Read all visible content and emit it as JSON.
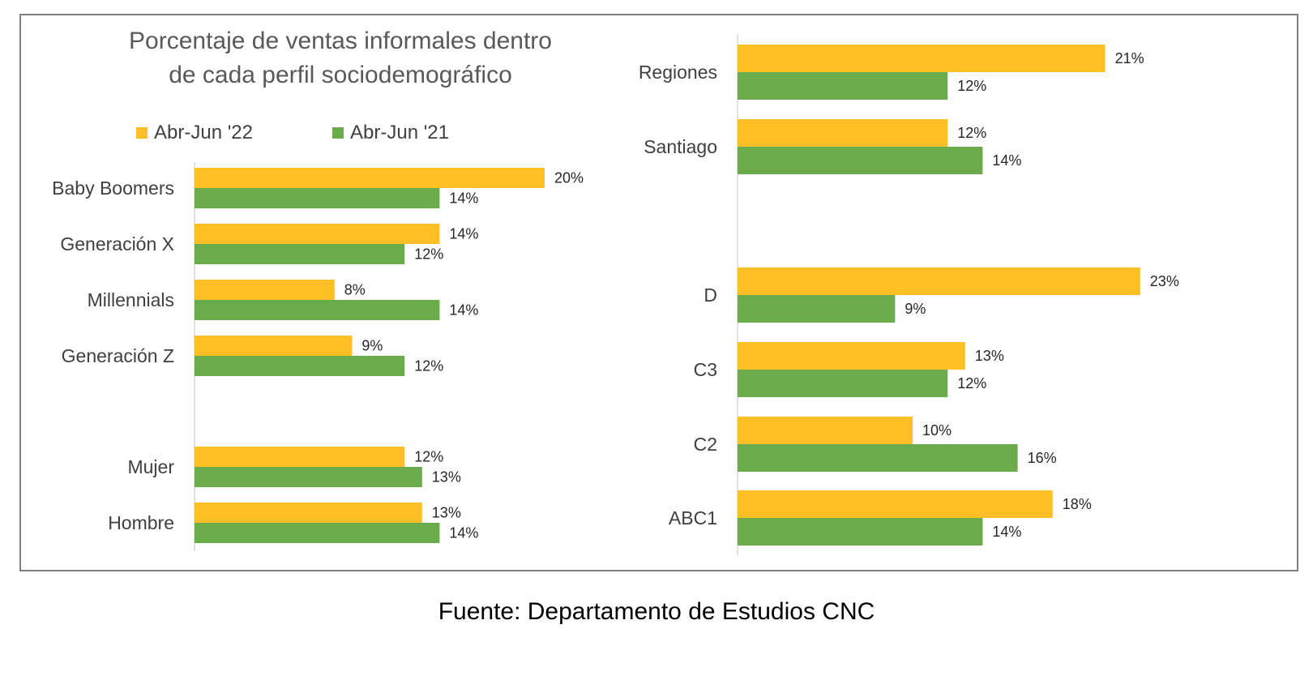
{
  "title_line1": "Porcentaje de ventas informales dentro",
  "title_line2": "de cada perfil sociodemográfico",
  "source": "Fuente: Departamento de Estudios CNC",
  "colors": {
    "series1": "#fdbe26",
    "series2": "#6aac4c",
    "axis": "#d9d9d9",
    "frame": "#7f7f7f"
  },
  "chart_data": {
    "type": "bar",
    "orientation": "horizontal",
    "title": "Porcentaje de ventas informales dentro de cada perfil sociodemográfico",
    "legend": [
      "Abr-Jun '22",
      "Abr-Jun '21"
    ],
    "legend_position": "top",
    "value_format": "percent",
    "grid": false,
    "panels": [
      {
        "name": "left",
        "xlim": [
          0,
          23
        ],
        "categories": [
          "Baby Boomers",
          "Generación X",
          "Millennials",
          "Generación Z",
          "Mujer",
          "Hombre"
        ],
        "series": [
          {
            "name": "Abr-Jun '22",
            "values": [
              20,
              14,
              8,
              9,
              12,
              13
            ]
          },
          {
            "name": "Abr-Jun '21",
            "values": [
              14,
              12,
              14,
              12,
              13,
              14
            ]
          }
        ]
      },
      {
        "name": "right",
        "xlim": [
          0,
          23
        ],
        "categories": [
          "Regiones",
          "Santiago",
          "D",
          "C3",
          "C2",
          "ABC1"
        ],
        "series": [
          {
            "name": "Abr-Jun '22",
            "values": [
              21,
              12,
              23,
              13,
              10,
              18
            ]
          },
          {
            "name": "Abr-Jun '21",
            "values": [
              12,
              14,
              9,
              12,
              16,
              14
            ]
          }
        ]
      }
    ]
  }
}
